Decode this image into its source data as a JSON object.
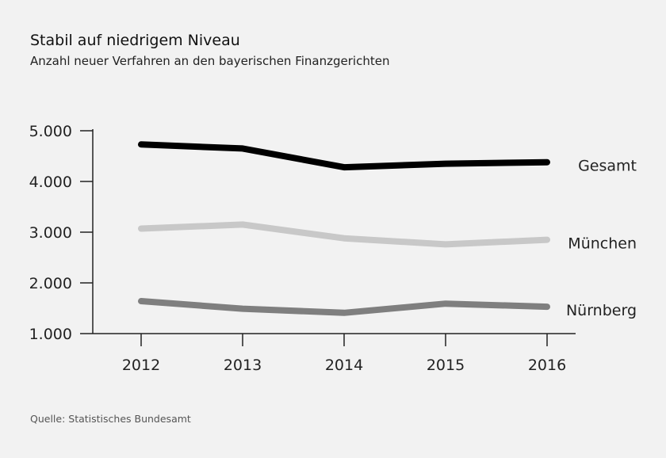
{
  "header": {
    "title": "Stabil auf niedrigem Niveau",
    "subtitle": "Anzahl neuer Verfahren an den bayerischen Finanzgerichten"
  },
  "footer": {
    "source": "Quelle: Statistisches Bundesamt"
  },
  "chart_data": {
    "type": "line",
    "title": "Stabil auf niedrigem Niveau",
    "subtitle": "Anzahl neuer Verfahren an den bayerischen Finanzgerichten",
    "xlabel": "",
    "ylabel": "",
    "x": [
      "2012",
      "2013",
      "2014",
      "2015",
      "2016"
    ],
    "ylim": [
      1000,
      5000
    ],
    "yticks": [
      1000,
      2000,
      3000,
      4000,
      5000
    ],
    "ytick_labels": [
      "1.000",
      "2.000",
      "3.000",
      "4.000",
      "5.000"
    ],
    "grid": false,
    "legend": "inline-right",
    "series": [
      {
        "name": "Gesamt",
        "color": "#000000",
        "values": [
          4730,
          4650,
          4280,
          4350,
          4380
        ]
      },
      {
        "name": "München",
        "color": "#c8c8c8",
        "values": [
          3070,
          3150,
          2880,
          2760,
          2850
        ]
      },
      {
        "name": "Nürnberg",
        "color": "#7f7f7f",
        "values": [
          1640,
          1490,
          1410,
          1590,
          1530
        ]
      }
    ]
  }
}
